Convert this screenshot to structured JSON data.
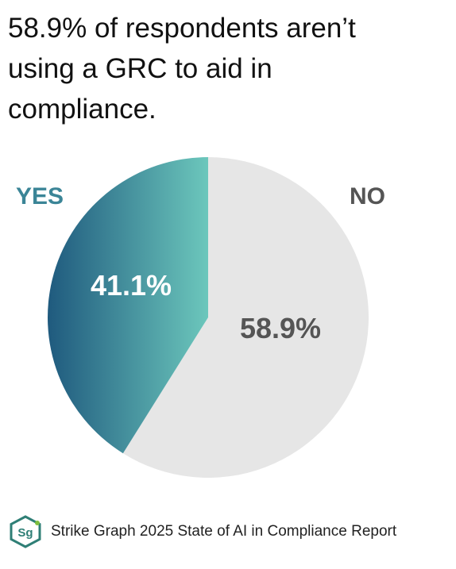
{
  "headline": "58.9% of respondents aren’t using a GRC to aid in compliance.",
  "chart_data": {
    "type": "pie",
    "title": "58.9% of respondents aren’t using a GRC to aid in compliance.",
    "slices": [
      {
        "label": "YES",
        "value": 41.1,
        "value_label": "41.1%",
        "color": "#2a6f8f"
      },
      {
        "label": "NO",
        "value": 58.9,
        "value_label": "58.9%",
        "color": "#e6e6e6"
      }
    ],
    "yes_gradient": [
      "#1f5a7e",
      "#6cc7bc"
    ],
    "label_colors": {
      "yes_category": "#3b8597",
      "no_category": "#555555",
      "yes_value": "#ffffff",
      "no_value": "#555555"
    }
  },
  "footer": {
    "logo_text": "Sg",
    "logo_colors": {
      "ring": "#2f7f76",
      "text": "#2f7f76",
      "accent": "#7fbf3f"
    },
    "source": "Strike Graph 2025 State of AI in Compliance Report"
  }
}
